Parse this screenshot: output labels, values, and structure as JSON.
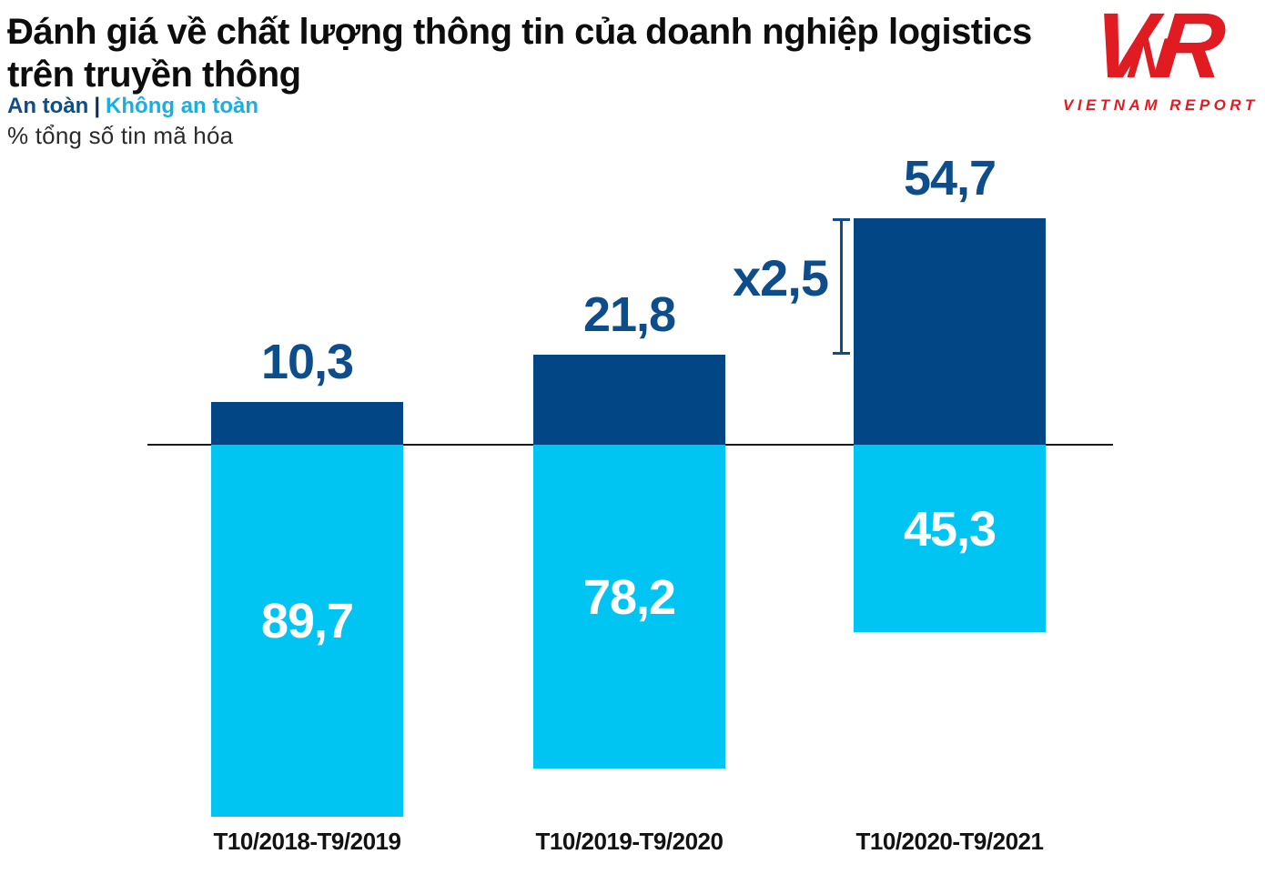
{
  "header": {
    "title_line1": "Đánh giá về chất lượng thông tin của doanh nghiệp logistics",
    "title_line2": "trên truyền thông",
    "legend": {
      "safe_label": "An toàn",
      "separator": "|",
      "unsafe_label": "Không an toàn"
    },
    "unit_note": "% tổng số tin mã hóa"
  },
  "logo": {
    "mark": [
      "V",
      "N",
      "R"
    ],
    "caption": "VIETNAM REPORT",
    "color": "#e01b22"
  },
  "colors": {
    "safe_bar": "#024685",
    "unsafe_bar": "#00c4f2",
    "value_label": "#0d4d8c",
    "legend_unsafe_text": "#17b0e6",
    "axis": "#1a1a1a",
    "title_text": "#0d0d0d"
  },
  "annotation": {
    "label": "x2,5",
    "from_category_index": 1,
    "to_category_index": 2,
    "meaning": "safe-news share grew 2.5x vs previous period"
  },
  "chart_data": {
    "type": "bar",
    "subtype": "diverging-vertical",
    "title": "Đánh giá về chất lượng thông tin của doanh nghiệp logistics trên truyền thông",
    "ylabel": "% tổng số tin mã hóa",
    "categories": [
      "T10/2018-T9/2019",
      "T10/2019-T9/2020",
      "T10/2020-T9/2021"
    ],
    "series": [
      {
        "name": "An toàn",
        "direction": "above-axis",
        "color": "#024685",
        "values": [
          10.3,
          21.8,
          54.7
        ],
        "labels": [
          "10,3",
          "21,8",
          "54,7"
        ]
      },
      {
        "name": "Không an toàn",
        "direction": "below-axis",
        "color": "#00c4f2",
        "values": [
          89.7,
          78.2,
          45.3
        ],
        "labels": [
          "89,7",
          "78,2",
          "45,3"
        ]
      }
    ],
    "value_format": "comma-decimal, percent of total coded news",
    "axis_range_pct": [
      0,
      100
    ],
    "grid": false,
    "legend_position": "top-left"
  }
}
